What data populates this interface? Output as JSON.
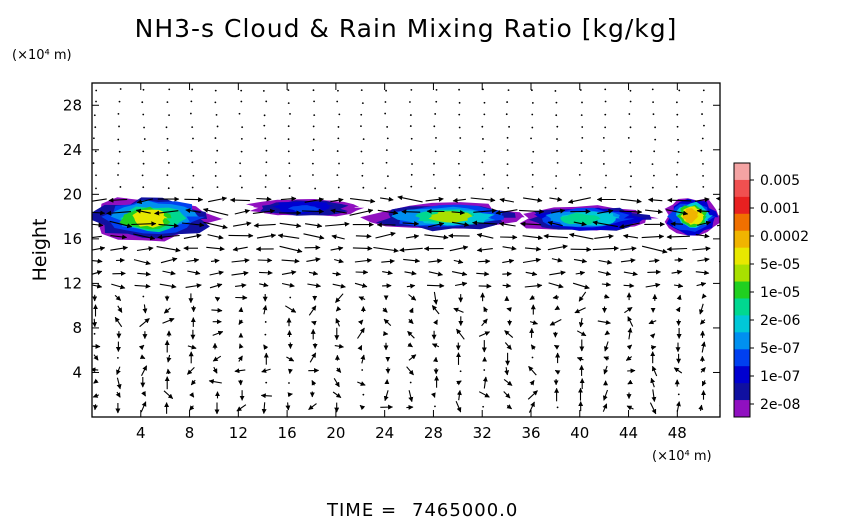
{
  "chart_data": {
    "type": "heatmap",
    "title": "NH3-s Cloud & Rain Mixing Ratio [kg/kg]",
    "xlabel": "",
    "ylabel": "Height",
    "x_unit": "(×10⁴ m)",
    "y_unit": "(×10⁴ m)",
    "xlim": [
      0,
      51.5
    ],
    "ylim": [
      0,
      30
    ],
    "x_ticks": [
      4,
      8,
      12,
      16,
      20,
      24,
      28,
      32,
      36,
      40,
      44,
      48
    ],
    "y_ticks": [
      4,
      8,
      12,
      16,
      20,
      24,
      28
    ],
    "colorbar": {
      "labels": [
        "0.005",
        "0.001",
        "0.0002",
        "5e-05",
        "1e-05",
        "2e-06",
        "5e-07",
        "1e-07",
        "2e-08"
      ],
      "colors": [
        "#f4a3a3",
        "#f05050",
        "#e82020",
        "#f07000",
        "#f0b400",
        "#e8e800",
        "#a8e000",
        "#20d020",
        "#00d890",
        "#00c8d8",
        "#0090f0",
        "#0040f0",
        "#0000d0",
        "#1010a0",
        "#9010c0"
      ]
    },
    "cloud_layers": [
      {
        "x_start": 0,
        "x_end": 10,
        "z_bottom": 16,
        "z_top": 19.8,
        "peak": "0.0002"
      },
      {
        "x_start": 13,
        "x_end": 22,
        "z_bottom": 18,
        "z_top": 19.6,
        "peak": "5e-07"
      },
      {
        "x_start": 23,
        "x_end": 35,
        "z_bottom": 16.8,
        "z_top": 19.2,
        "peak": "5e-05"
      },
      {
        "x_start": 35,
        "x_end": 46,
        "z_bottom": 16.6,
        "z_top": 19.0,
        "peak": "1e-05"
      },
      {
        "x_start": 47,
        "x_end": 51.5,
        "z_bottom": 16.4,
        "z_top": 19.6,
        "peak": "0.001"
      }
    ],
    "vector_field": "wind velocity arrows"
  },
  "footer": {
    "time_label": "TIME",
    "time_eq": "=",
    "time_value": "7465000.0"
  }
}
